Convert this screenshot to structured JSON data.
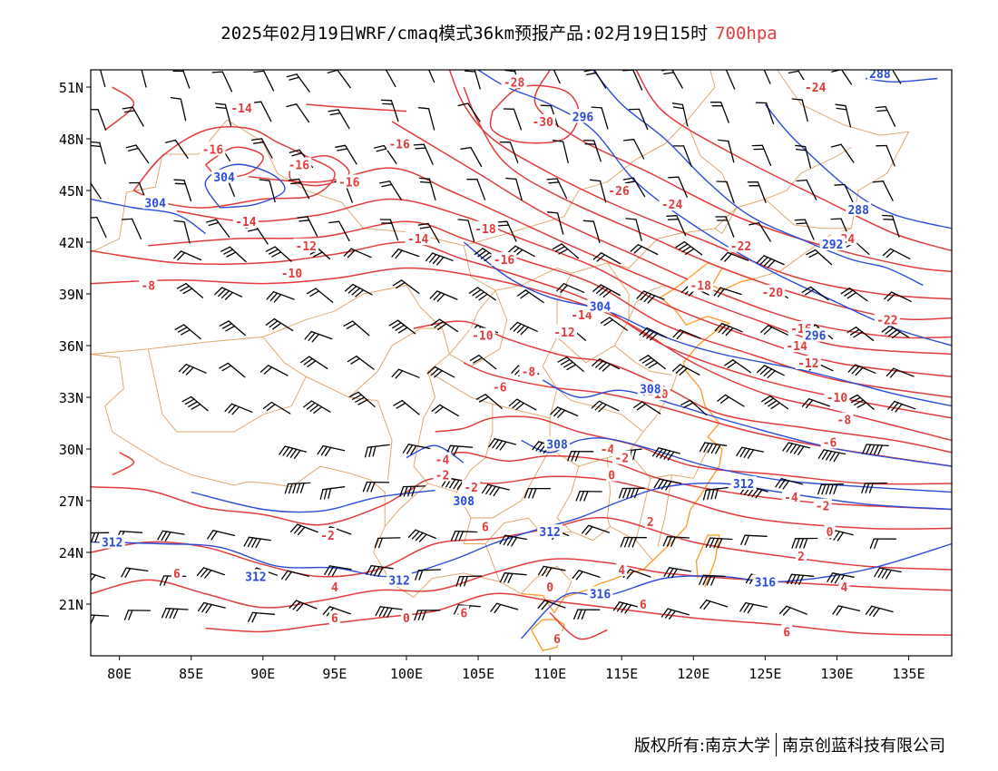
{
  "title": {
    "main": "2025年02月19日WRF/cmaq模式36km预报产品:02月19日15时",
    "level": "700hpa"
  },
  "axes": {
    "lat_labels": [
      "51N",
      "48N",
      "45N",
      "42N",
      "39N",
      "36N",
      "33N",
      "30N",
      "27N",
      "24N",
      "21N"
    ],
    "lat_values": [
      51,
      48,
      45,
      42,
      39,
      36,
      33,
      30,
      27,
      24,
      21
    ],
    "lon_labels": [
      "80E",
      "85E",
      "90E",
      "95E",
      "100E",
      "105E",
      "110E",
      "115E",
      "120E",
      "125E",
      "130E",
      "135E"
    ],
    "lon_values": [
      80,
      85,
      90,
      95,
      100,
      105,
      110,
      115,
      120,
      125,
      130,
      135
    ],
    "lon_range": [
      78,
      138
    ],
    "lat_range": [
      18,
      52
    ]
  },
  "colors": {
    "temperature": "#e33b3b",
    "height": "#2a4bd8",
    "boundary": "#e0a060",
    "coast": "#ff9922",
    "barb": "#000000"
  },
  "temperature_labels": [
    {
      "text": "-14",
      "lon": 88.5,
      "lat": 49.8
    },
    {
      "text": "-16",
      "lon": 86.5,
      "lat": 47.4
    },
    {
      "text": "-16",
      "lon": 92.5,
      "lat": 46.5
    },
    {
      "text": "-16",
      "lon": 96.0,
      "lat": 45.5
    },
    {
      "text": "-16",
      "lon": 99.5,
      "lat": 47.7
    },
    {
      "text": "-14",
      "lon": 88.8,
      "lat": 43.2
    },
    {
      "text": "-12",
      "lon": 93.0,
      "lat": 41.8
    },
    {
      "text": "-10",
      "lon": 92.0,
      "lat": 40.2
    },
    {
      "text": "-8",
      "lon": 82.0,
      "lat": 39.5
    },
    {
      "text": "-14",
      "lon": 100.8,
      "lat": 42.2
    },
    {
      "text": "-18",
      "lon": 105.5,
      "lat": 42.8
    },
    {
      "text": "-16",
      "lon": 106.8,
      "lat": 41.0
    },
    {
      "text": "-28",
      "lon": 107.5,
      "lat": 51.3
    },
    {
      "text": "-30",
      "lon": 109.5,
      "lat": 49.0
    },
    {
      "text": "-26",
      "lon": 114.8,
      "lat": 45.0
    },
    {
      "text": "-24",
      "lon": 118.5,
      "lat": 44.2
    },
    {
      "text": "-22",
      "lon": 123.3,
      "lat": 41.8
    },
    {
      "text": "-24",
      "lon": 128.5,
      "lat": 51.0
    },
    {
      "text": "-24",
      "lon": 130.5,
      "lat": 42.2
    },
    {
      "text": "-18",
      "lon": 120.5,
      "lat": 39.5
    },
    {
      "text": "-20",
      "lon": 125.5,
      "lat": 39.1
    },
    {
      "text": "-22",
      "lon": 133.5,
      "lat": 37.5
    },
    {
      "text": "-16",
      "lon": 127.5,
      "lat": 37.0
    },
    {
      "text": "-14",
      "lon": 127.2,
      "lat": 36.0
    },
    {
      "text": "-12",
      "lon": 128.0,
      "lat": 35.0
    },
    {
      "text": "-10",
      "lon": 130.0,
      "lat": 33.0
    },
    {
      "text": "-8",
      "lon": 130.5,
      "lat": 31.7
    },
    {
      "text": "-6",
      "lon": 129.5,
      "lat": 30.4
    },
    {
      "text": "-14",
      "lon": 112.2,
      "lat": 37.8
    },
    {
      "text": "-12",
      "lon": 111.0,
      "lat": 36.8
    },
    {
      "text": "-10",
      "lon": 105.3,
      "lat": 36.6
    },
    {
      "text": "-8",
      "lon": 108.5,
      "lat": 34.5
    },
    {
      "text": "-6",
      "lon": 106.5,
      "lat": 33.6
    },
    {
      "text": "-10",
      "lon": 117.5,
      "lat": 33.2
    },
    {
      "text": "-4",
      "lon": 114.0,
      "lat": 30.0
    },
    {
      "text": "-2",
      "lon": 115.0,
      "lat": 29.5
    },
    {
      "text": "-4",
      "lon": 102.5,
      "lat": 29.4
    },
    {
      "text": "-2",
      "lon": 102.5,
      "lat": 28.5
    },
    {
      "text": "-2",
      "lon": 104.5,
      "lat": 27.8
    },
    {
      "text": "0",
      "lon": 114.3,
      "lat": 28.5
    },
    {
      "text": "-2",
      "lon": 129.0,
      "lat": 26.7
    },
    {
      "text": "-4",
      "lon": 126.8,
      "lat": 27.2
    },
    {
      "text": "0",
      "lon": 129.5,
      "lat": 25.2
    },
    {
      "text": "2",
      "lon": 127.5,
      "lat": 23.8
    },
    {
      "text": "-2",
      "lon": 94.5,
      "lat": 25.0
    },
    {
      "text": "2",
      "lon": 117.0,
      "lat": 25.8
    },
    {
      "text": "6",
      "lon": 105.5,
      "lat": 25.5
    },
    {
      "text": "4",
      "lon": 95.0,
      "lat": 22.0
    },
    {
      "text": "6",
      "lon": 84.0,
      "lat": 22.8
    },
    {
      "text": "4",
      "lon": 115.0,
      "lat": 23.0
    },
    {
      "text": "0",
      "lon": 110.0,
      "lat": 22.0
    },
    {
      "text": "4",
      "lon": 130.5,
      "lat": 22.0
    },
    {
      "text": "6",
      "lon": 95.0,
      "lat": 20.2
    },
    {
      "text": "0",
      "lon": 100.0,
      "lat": 20.2
    },
    {
      "text": "6",
      "lon": 104.0,
      "lat": 20.5
    },
    {
      "text": "6",
      "lon": 116.5,
      "lat": 21.0
    },
    {
      "text": "6",
      "lon": 110.5,
      "lat": 19.0
    },
    {
      "text": "6",
      "lon": 126.5,
      "lat": 19.4
    }
  ],
  "height_labels": [
    {
      "text": "304",
      "lon": 87.3,
      "lat": 45.8
    },
    {
      "text": "304",
      "lon": 82.5,
      "lat": 44.3
    },
    {
      "text": "296",
      "lon": 112.3,
      "lat": 49.3
    },
    {
      "text": "288",
      "lon": 133.0,
      "lat": 51.8
    },
    {
      "text": "288",
      "lon": 131.5,
      "lat": 43.9
    },
    {
      "text": "292",
      "lon": 129.7,
      "lat": 41.9
    },
    {
      "text": "296",
      "lon": 128.5,
      "lat": 36.6
    },
    {
      "text": "304",
      "lon": 113.5,
      "lat": 38.3
    },
    {
      "text": "308",
      "lon": 117.0,
      "lat": 33.5
    },
    {
      "text": "308",
      "lon": 110.5,
      "lat": 30.3
    },
    {
      "text": "308",
      "lon": 104.0,
      "lat": 27.0
    },
    {
      "text": "312",
      "lon": 123.5,
      "lat": 28.0
    },
    {
      "text": "312",
      "lon": 110.0,
      "lat": 25.2
    },
    {
      "text": "312",
      "lon": 79.5,
      "lat": 24.6
    },
    {
      "text": "312",
      "lon": 89.5,
      "lat": 22.6
    },
    {
      "text": "312",
      "lon": 99.5,
      "lat": 22.4
    },
    {
      "text": "316",
      "lon": 113.5,
      "lat": 21.6
    },
    {
      "text": "316",
      "lon": 125.0,
      "lat": 22.3
    }
  ],
  "footer": {
    "copyright": "版权所有:南京大学",
    "company": "南京创蓝科技有限公司"
  }
}
